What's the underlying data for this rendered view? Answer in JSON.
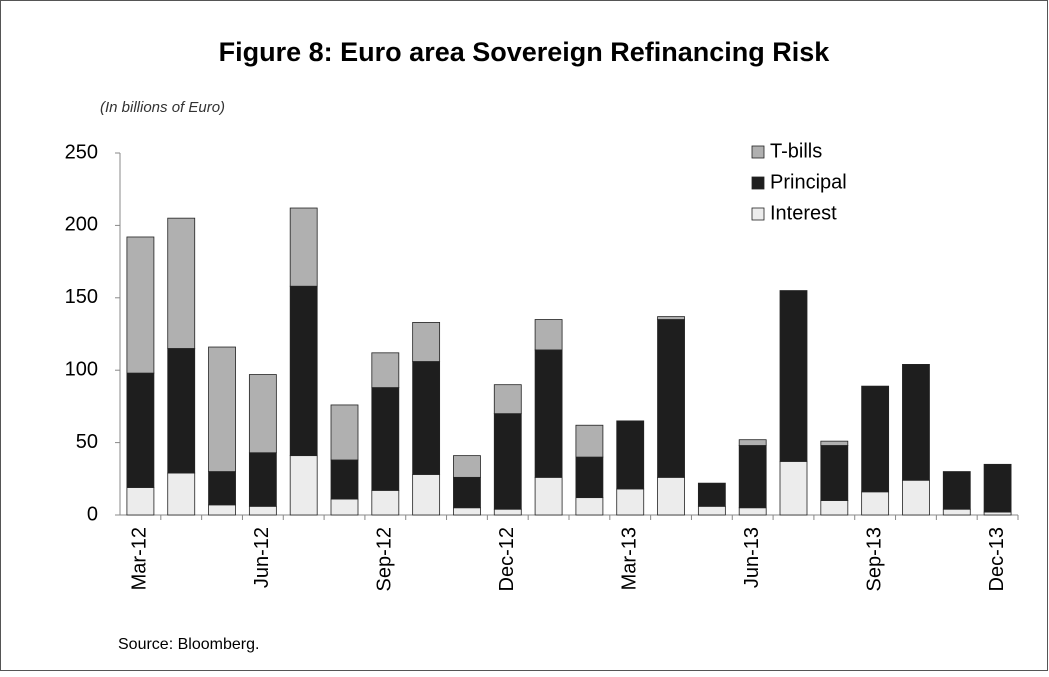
{
  "chart_data": {
    "type": "stacked_bar",
    "title": "Figure 8: Euro area Sovereign Refinancing Risk",
    "subtitle": "(In billions of Euro)",
    "source": "Source: Bloomberg.",
    "categories": [
      "Mar-12",
      null,
      null,
      "Jun-12",
      null,
      null,
      "Sep-12",
      null,
      null,
      "Dec-12",
      null,
      null,
      "Mar-13",
      null,
      null,
      "Jun-13",
      null,
      null,
      "Sep-13",
      null,
      null,
      "Dec-13"
    ],
    "series": [
      {
        "name": "T-bills",
        "color": "#b0b0b0",
        "values": [
          94,
          90,
          86,
          54,
          54,
          38,
          24,
          27,
          15,
          20,
          21,
          22,
          0,
          2,
          0,
          4,
          0,
          3,
          0,
          0,
          0,
          0
        ]
      },
      {
        "name": "Principal",
        "color": "#1e1e1e",
        "values": [
          79,
          86,
          23,
          37,
          117,
          27,
          71,
          78,
          21,
          66,
          88,
          28,
          47,
          109,
          16,
          43,
          118,
          38,
          73,
          80,
          26,
          33
        ]
      },
      {
        "name": "Interest",
        "color": "#ececec",
        "values": [
          19,
          29,
          7,
          6,
          41,
          11,
          17,
          28,
          5,
          4,
          26,
          12,
          18,
          26,
          6,
          5,
          37,
          10,
          16,
          24,
          4,
          2
        ]
      }
    ],
    "ylim": [
      0,
      250
    ],
    "yticks": [
      0,
      50,
      100,
      150,
      200,
      250
    ],
    "grid": false,
    "legend": "top-right"
  }
}
